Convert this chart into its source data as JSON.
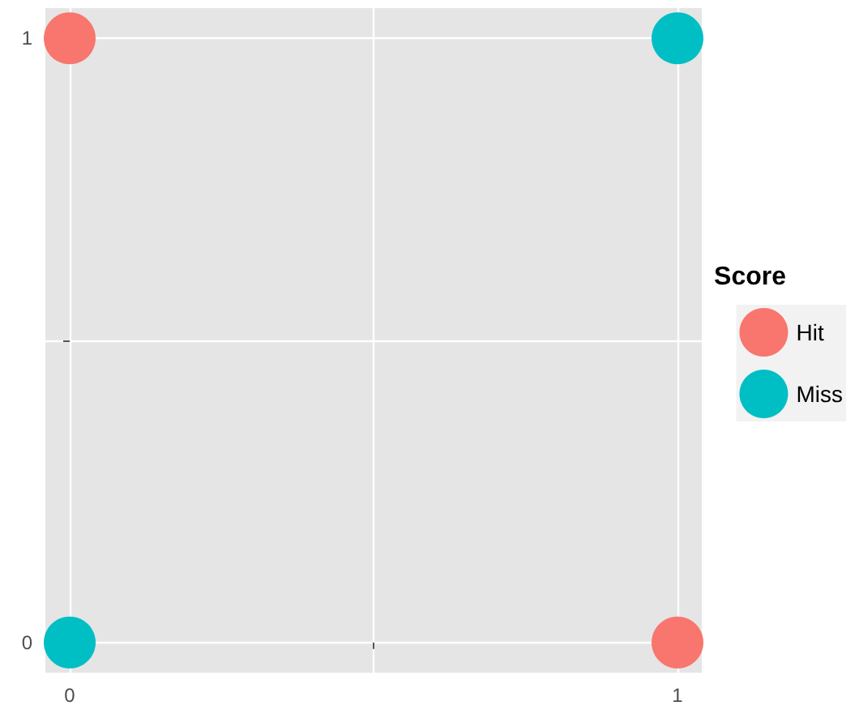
{
  "chart_data": {
    "type": "scatter",
    "legend_title": "Score",
    "x": [
      0,
      1
    ],
    "series": [
      {
        "name": "Hit",
        "color": "#f8766d",
        "values": [
          1,
          0
        ]
      },
      {
        "name": "Miss",
        "color": "#00bfc4",
        "values": [
          0,
          1
        ]
      }
    ],
    "xlim": [
      -0.04,
      1.04
    ],
    "ylim": [
      -0.05,
      1.05
    ],
    "xticks": [
      0,
      {
        "value": 0.5,
        "label": null
      },
      1
    ],
    "yticks": [
      0,
      {
        "value": 0.5,
        "label": null
      },
      1
    ],
    "grid": true,
    "legend": "right",
    "marker": "circle"
  }
}
